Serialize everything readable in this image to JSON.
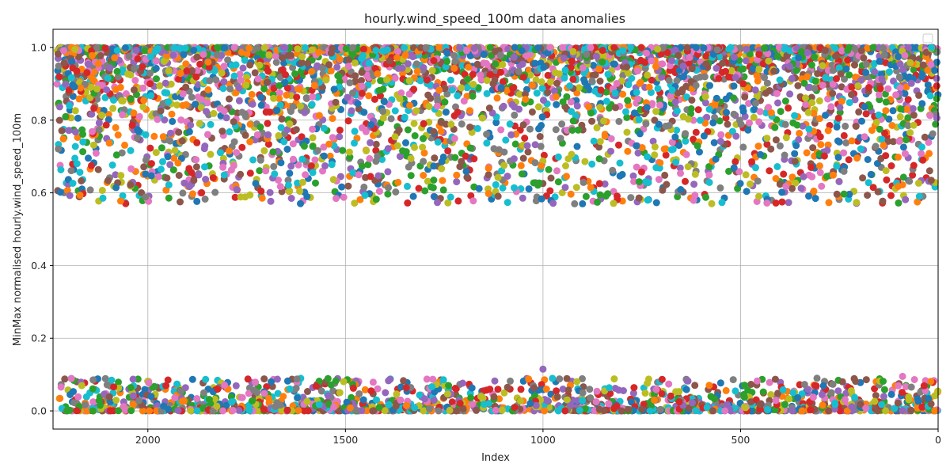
{
  "chart_data": {
    "type": "scatter",
    "title": "hourly.wind_speed_100m data anomalies",
    "xlabel": "Index",
    "ylabel": "MinMax normalised hourly.wind_speed_100m",
    "xlim": [
      2240,
      0
    ],
    "ylim": [
      -0.05,
      1.05
    ],
    "x_inverted": true,
    "x_ticks": [
      2000,
      1500,
      1000,
      500,
      0
    ],
    "x_tick_labels": [
      "2000",
      "1500",
      "1000",
      "500",
      "0"
    ],
    "y_ticks": [
      0.0,
      0.2,
      0.4,
      0.6,
      0.8,
      1.0
    ],
    "y_tick_labels": [
      "0.0",
      "0.2",
      "0.4",
      "0.6",
      "0.8",
      "1.0"
    ],
    "grid": true,
    "legend": "top-right (empty)",
    "index_range": [
      0,
      2230
    ],
    "clusters": [
      {
        "name": "upper",
        "y_range": [
          0.57,
          1.0
        ],
        "density_peak": 1.0
      },
      {
        "name": "lower",
        "y_range": [
          0.0,
          0.115
        ],
        "density_peak": 0.0
      }
    ],
    "notable_points": [
      {
        "x": 1000,
        "y": 0.115
      },
      {
        "x": 920,
        "y": 0.57
      },
      {
        "x": 900,
        "y": 0.57
      },
      {
        "x": 395,
        "y": 0.575
      },
      {
        "x": 90,
        "y": 0.095
      },
      {
        "x": 735,
        "y": 0.58
      }
    ],
    "series_colors": [
      "#1f77b4",
      "#ff7f0e",
      "#2ca02c",
      "#d62728",
      "#9467bd",
      "#8c564b",
      "#e377c2",
      "#7f7f7f",
      "#bcbd22",
      "#17becf"
    ]
  }
}
